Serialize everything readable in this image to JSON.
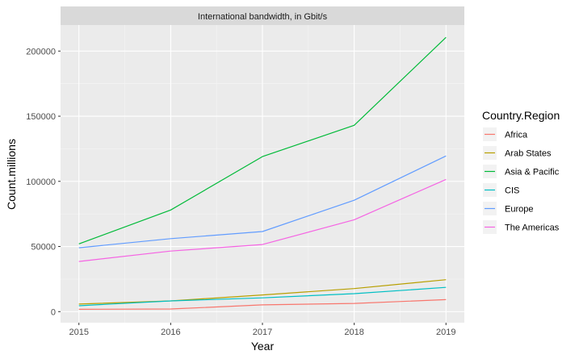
{
  "chart_data": {
    "type": "line",
    "facet_title": "International bandwidth, in Gbit/s",
    "xlabel": "Year",
    "ylabel": "Count.millions",
    "x": [
      2015,
      2016,
      2017,
      2018,
      2019
    ],
    "x_ticks": [
      "2015",
      "2016",
      "2017",
      "2018",
      "2019"
    ],
    "ylim": [
      -8500,
      220000
    ],
    "y_ticks": [
      0,
      50000,
      100000,
      150000,
      200000
    ],
    "y_tick_labels": [
      "0",
      "50000",
      "100000",
      "150000",
      "200000"
    ],
    "grid": true,
    "legend": {
      "title": "Country.Region",
      "position": "right"
    },
    "series": [
      {
        "name": "Africa",
        "color": "#F8766D",
        "values": [
          1800,
          2000,
          5200,
          6300,
          9200
        ]
      },
      {
        "name": "Arab States",
        "color": "#B79F00",
        "values": [
          5800,
          8200,
          12800,
          17700,
          24500
        ]
      },
      {
        "name": "Asia & Pacific",
        "color": "#00BA38",
        "values": [
          52000,
          78000,
          119000,
          143000,
          210500
        ]
      },
      {
        "name": "CIS",
        "color": "#00BFC4",
        "values": [
          4500,
          8200,
          10600,
          13800,
          18600
        ]
      },
      {
        "name": "Europe",
        "color": "#619CFF",
        "values": [
          49000,
          56000,
          61500,
          85500,
          119500
        ]
      },
      {
        "name": "The Americas",
        "color": "#F564E3",
        "values": [
          38500,
          46500,
          51500,
          70500,
          101500
        ]
      }
    ]
  }
}
